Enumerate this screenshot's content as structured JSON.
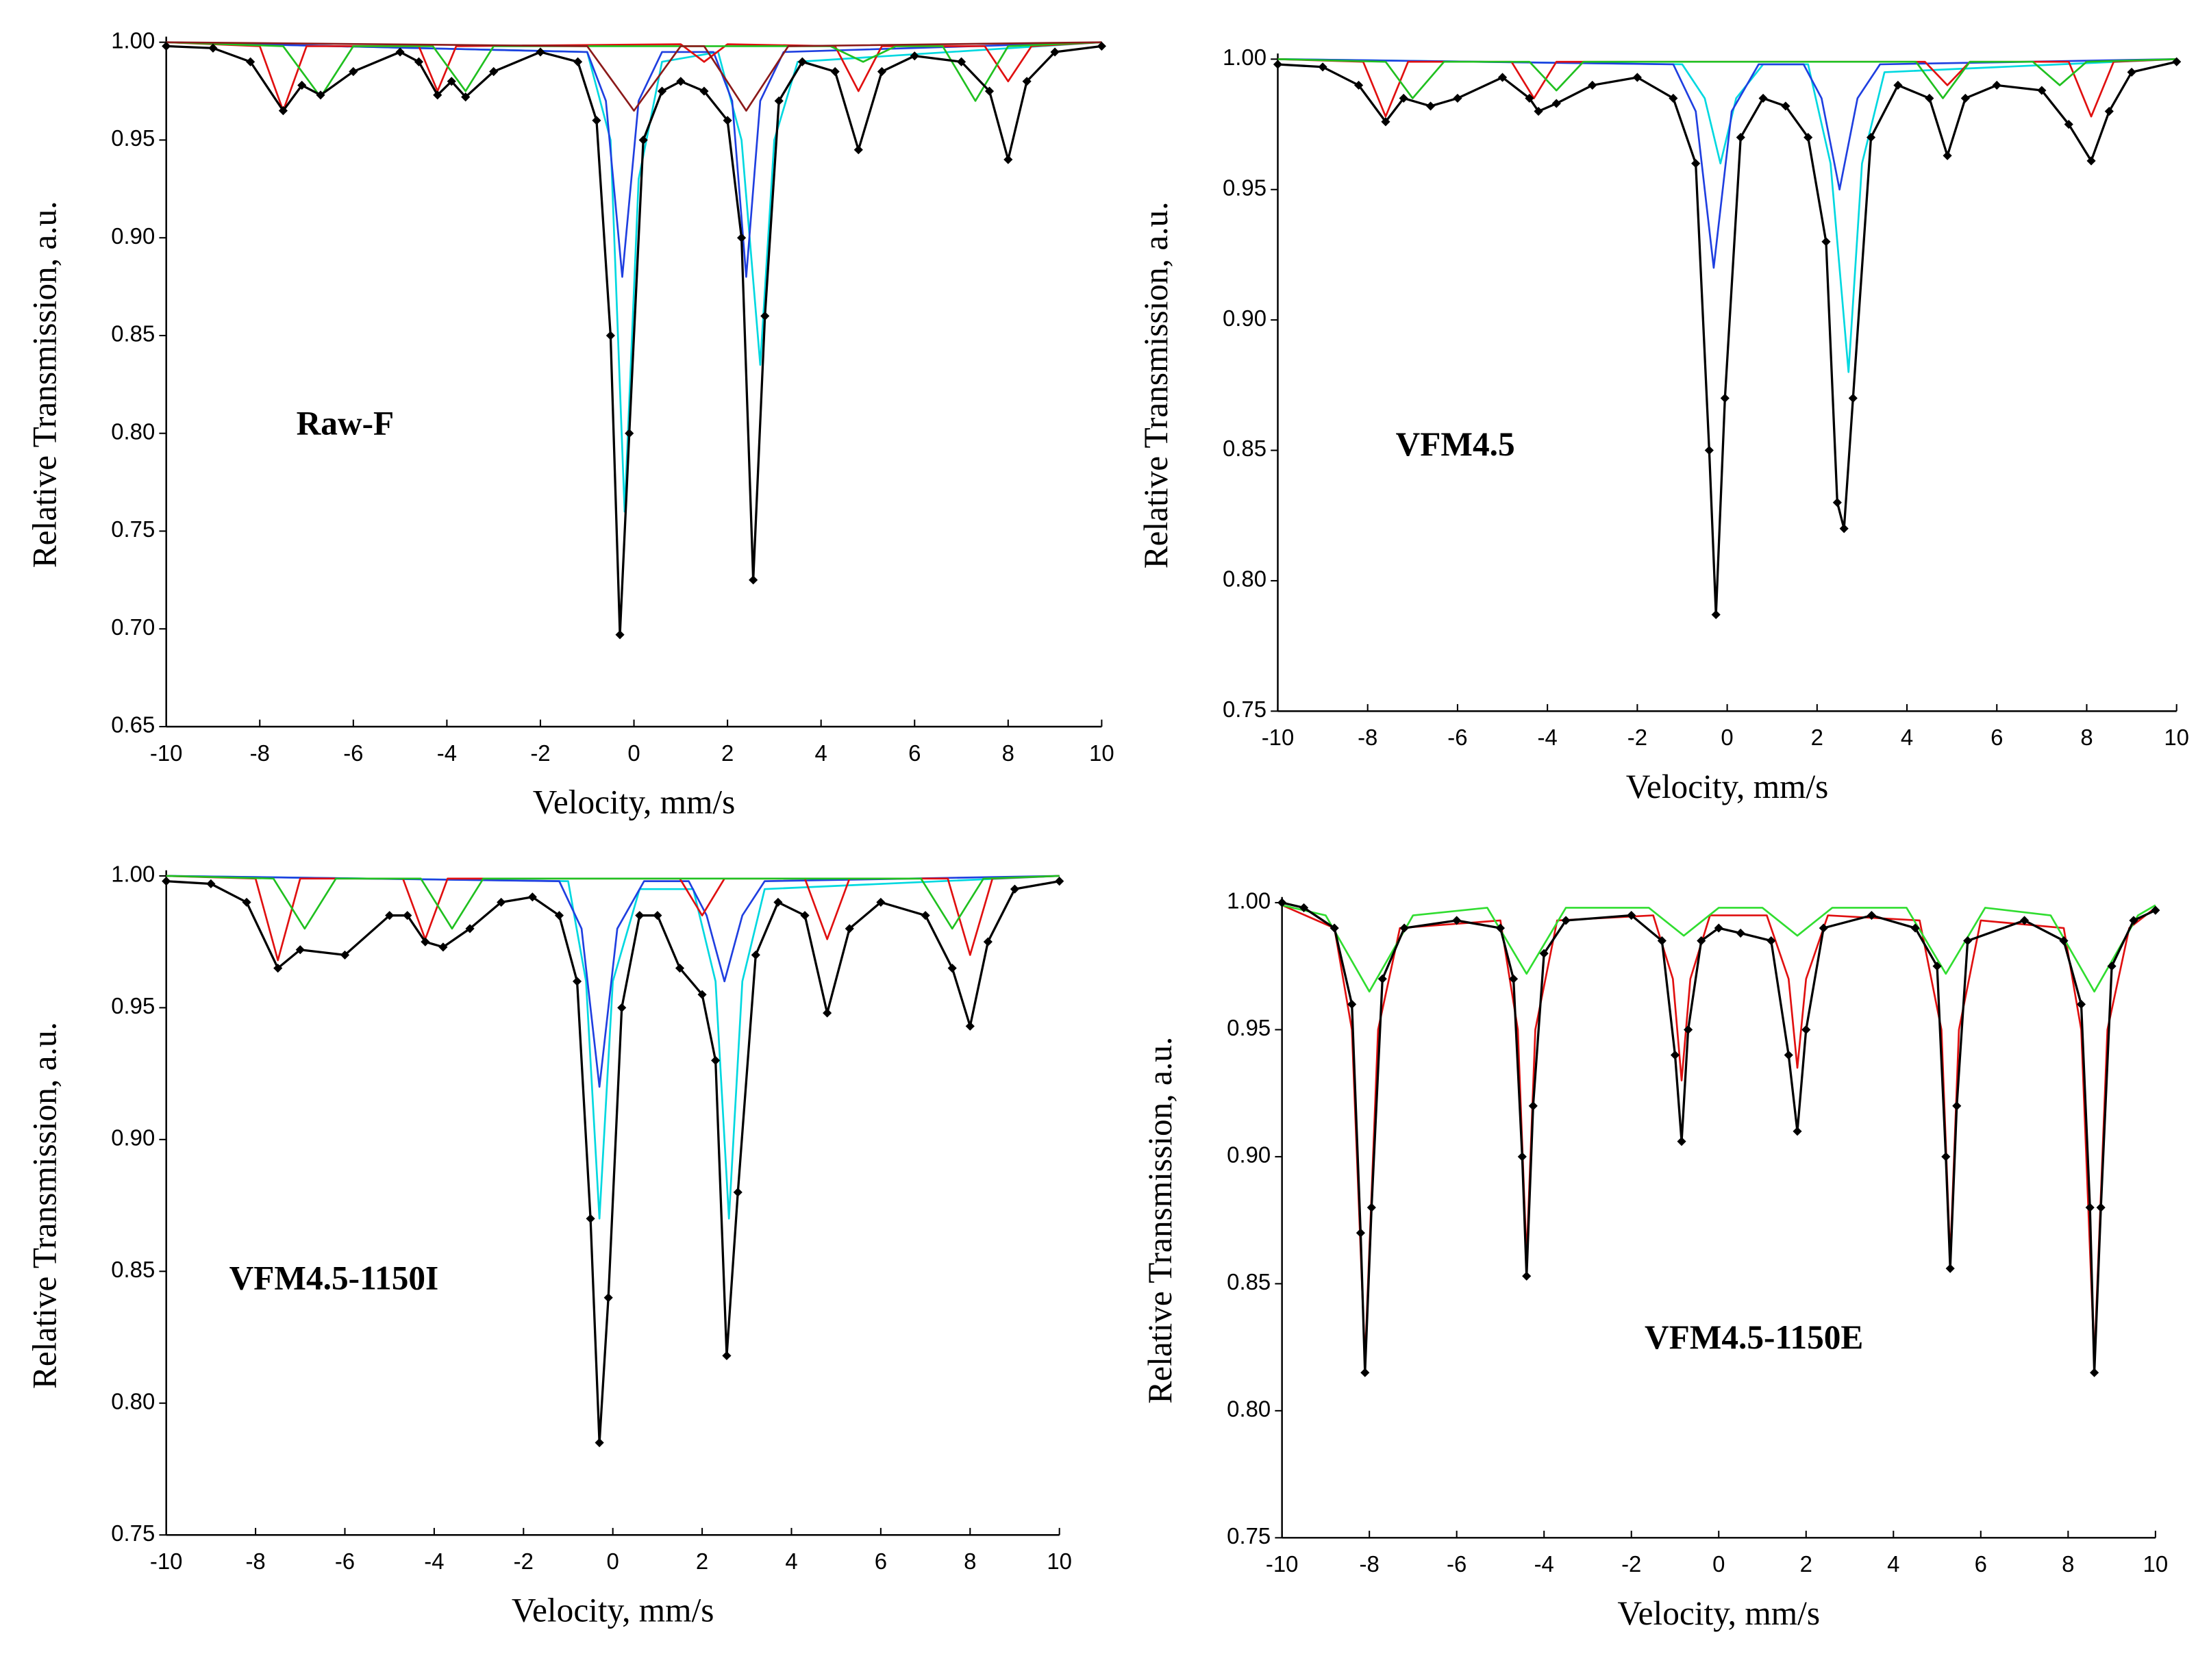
{
  "chart_data": [
    {
      "type": "line",
      "annotation": "Raw-F",
      "x_label": "Velocity, mm/s",
      "y_label": "Relative Transmission, a.u.",
      "xlim": [
        -10,
        10
      ],
      "xticks": [
        -10,
        -8,
        -6,
        -4,
        -2,
        0,
        2,
        4,
        6,
        8,
        10
      ],
      "ylim": [
        0.65,
        1.0
      ],
      "yticks": [
        {
          "value": 0.65,
          "label": "0.65"
        },
        {
          "value": 0.7,
          "label": "0.70"
        },
        {
          "value": 0.75,
          "label": "0.75"
        },
        {
          "value": 0.8,
          "label": "0.80"
        },
        {
          "value": 0.85,
          "label": "0.85"
        },
        {
          "value": 0.9,
          "label": "0.90"
        },
        {
          "value": 0.95,
          "label": "0.95"
        },
        {
          "value": 1.0,
          "label": "1.00"
        }
      ],
      "series": [
        {
          "color": "#00d8e0",
          "x": [
            -10,
            -1,
            -0.5,
            -0.2,
            0.1,
            0.6,
            1.8,
            2.3,
            2.7,
            3.0,
            3.5,
            10
          ],
          "values": [
            1,
            0.995,
            0.95,
            0.76,
            0.93,
            0.99,
            0.995,
            0.95,
            0.835,
            0.95,
            0.99,
            1
          ]
        },
        {
          "color": "#1f3fe0",
          "x": [
            -10,
            -1,
            -0.6,
            -0.25,
            0.1,
            0.6,
            1.7,
            2.1,
            2.4,
            2.7,
            3.2,
            10
          ],
          "values": [
            1,
            0.995,
            0.97,
            0.88,
            0.97,
            0.995,
            0.995,
            0.97,
            0.88,
            0.97,
            0.995,
            1
          ]
        },
        {
          "color": "#e01010",
          "x": [
            -10,
            -8,
            -7.5,
            -7,
            -4.6,
            -4.2,
            -3.8,
            1,
            1.5,
            2,
            4.3,
            4.8,
            5.3,
            7.5,
            8,
            8.5,
            10
          ],
          "values": [
            1,
            0.998,
            0.965,
            0.998,
            0.998,
            0.975,
            0.998,
            0.999,
            0.99,
            0.999,
            0.998,
            0.975,
            0.998,
            0.998,
            0.98,
            0.998,
            1
          ]
        },
        {
          "color": "#20c020",
          "x": [
            -10,
            -7.5,
            -6.7,
            -6,
            -4.3,
            -3.6,
            -3,
            4.2,
            4.9,
            5.6,
            6.6,
            7.3,
            8,
            10
          ],
          "values": [
            1,
            0.998,
            0.972,
            0.998,
            0.998,
            0.975,
            0.998,
            0.998,
            0.99,
            0.998,
            0.998,
            0.97,
            0.998,
            1
          ]
        },
        {
          "color": "#8b1a1a",
          "x": [
            -10,
            -1,
            0,
            1,
            1.5,
            2.4,
            3.3,
            10
          ],
          "values": [
            1,
            0.998,
            0.965,
            0.998,
            0.998,
            0.965,
            0.998,
            1
          ]
        },
        {
          "color": "#000000",
          "marker": "diamond",
          "x": [
            -10,
            -9,
            -8.2,
            -7.5,
            -7.1,
            -6.7,
            -6,
            -5,
            -4.6,
            -4.2,
            -3.9,
            -3.6,
            -3,
            -2,
            -1.2,
            -0.8,
            -0.5,
            -0.3,
            -0.1,
            0.2,
            0.6,
            1,
            1.5,
            2,
            2.3,
            2.55,
            2.8,
            3.1,
            3.6,
            4.3,
            4.8,
            5.3,
            6,
            7,
            7.6,
            8,
            8.4,
            9,
            10
          ],
          "values": [
            0.998,
            0.997,
            0.99,
            0.965,
            0.978,
            0.973,
            0.985,
            0.995,
            0.99,
            0.973,
            0.98,
            0.972,
            0.985,
            0.995,
            0.99,
            0.96,
            0.85,
            0.697,
            0.8,
            0.95,
            0.975,
            0.98,
            0.975,
            0.96,
            0.9,
            0.725,
            0.86,
            0.97,
            0.99,
            0.985,
            0.945,
            0.985,
            0.993,
            0.99,
            0.975,
            0.94,
            0.98,
            0.995,
            0.998
          ]
        }
      ]
    },
    {
      "type": "line",
      "annotation": "VFM4.5",
      "x_label": "Velocity, mm/s",
      "y_label": "Relative Transmission, a.u.",
      "xlim": [
        -10,
        10
      ],
      "xticks": [
        -10,
        -8,
        -6,
        -4,
        -2,
        0,
        2,
        4,
        6,
        8,
        10
      ],
      "ylim": [
        0.75,
        1.0
      ],
      "yticks": [
        {
          "value": 0.75,
          "label": "0.75"
        },
        {
          "value": 0.8,
          "label": "0.80"
        },
        {
          "value": 0.85,
          "label": "0.85"
        },
        {
          "value": 0.9,
          "label": "0.90"
        },
        {
          "value": 0.95,
          "label": "0.95"
        },
        {
          "value": 1.0,
          "label": "1.00"
        }
      ],
      "series": [
        {
          "color": "#00d8e0",
          "x": [
            -10,
            -1,
            -0.5,
            -0.15,
            0.2,
            0.8,
            1.8,
            2.3,
            2.7,
            3.0,
            3.5,
            10
          ],
          "values": [
            1,
            0.998,
            0.985,
            0.96,
            0.985,
            0.998,
            0.998,
            0.96,
            0.88,
            0.96,
            0.995,
            1
          ]
        },
        {
          "color": "#1f3fe0",
          "x": [
            -10,
            -1.2,
            -0.7,
            -0.3,
            0.1,
            0.7,
            1.7,
            2.1,
            2.5,
            2.9,
            3.4,
            10
          ],
          "values": [
            1,
            0.998,
            0.98,
            0.92,
            0.98,
            0.998,
            0.998,
            0.985,
            0.95,
            0.985,
            0.998,
            1
          ]
        },
        {
          "color": "#e01010",
          "x": [
            -10,
            -8.1,
            -7.6,
            -7.1,
            -4.8,
            -4.3,
            -3.8,
            4.4,
            4.9,
            5.4,
            7.6,
            8.1,
            8.6,
            10
          ],
          "values": [
            1,
            0.999,
            0.978,
            0.999,
            0.999,
            0.985,
            0.999,
            0.999,
            0.99,
            0.999,
            0.999,
            0.978,
            0.999,
            1
          ]
        },
        {
          "color": "#20c020",
          "x": [
            -10,
            -7.6,
            -7,
            -6.3,
            -4.4,
            -3.8,
            -3.2,
            4.2,
            4.8,
            5.4,
            6.8,
            7.4,
            8,
            10
          ],
          "values": [
            1,
            0.999,
            0.985,
            0.999,
            0.999,
            0.988,
            0.999,
            0.999,
            0.985,
            0.999,
            0.999,
            0.99,
            0.999,
            1
          ]
        },
        {
          "color": "#000000",
          "marker": "diamond",
          "x": [
            -10,
            -9,
            -8.2,
            -7.6,
            -7.2,
            -6.6,
            -6,
            -5,
            -4.4,
            -4.2,
            -3.8,
            -3,
            -2,
            -1.2,
            -0.7,
            -0.4,
            -0.25,
            -0.05,
            0.3,
            0.8,
            1.3,
            1.8,
            2.2,
            2.45,
            2.6,
            2.8,
            3.2,
            3.8,
            4.5,
            4.9,
            5.3,
            6,
            7,
            7.6,
            8.1,
            8.5,
            9,
            10
          ],
          "values": [
            0.998,
            0.997,
            0.99,
            0.976,
            0.985,
            0.982,
            0.985,
            0.993,
            0.985,
            0.98,
            0.983,
            0.99,
            0.993,
            0.985,
            0.96,
            0.85,
            0.787,
            0.87,
            0.97,
            0.985,
            0.982,
            0.97,
            0.93,
            0.83,
            0.82,
            0.87,
            0.97,
            0.99,
            0.985,
            0.963,
            0.985,
            0.99,
            0.988,
            0.975,
            0.961,
            0.98,
            0.995,
            0.999
          ]
        }
      ]
    },
    {
      "type": "line",
      "annotation": "VFM4.5-1150I",
      "x_label": "Velocity, mm/s",
      "y_label": "Relative Transmission, a.u.",
      "xlim": [
        -10,
        10
      ],
      "xticks": [
        -10,
        -8,
        -6,
        -4,
        -2,
        0,
        2,
        4,
        6,
        8,
        10
      ],
      "ylim": [
        0.75,
        1.0
      ],
      "yticks": [
        {
          "value": 0.75,
          "label": "0.75"
        },
        {
          "value": 0.8,
          "label": "0.80"
        },
        {
          "value": 0.85,
          "label": "0.85"
        },
        {
          "value": 0.9,
          "label": "0.90"
        },
        {
          "value": 0.95,
          "label": "0.95"
        },
        {
          "value": 1.0,
          "label": "1.00"
        }
      ],
      "series": [
        {
          "color": "#00d8e0",
          "x": [
            -10,
            -1,
            -0.6,
            -0.3,
            0,
            0.6,
            1.8,
            2.3,
            2.6,
            2.9,
            3.4,
            10
          ],
          "values": [
            1,
            0.998,
            0.96,
            0.87,
            0.96,
            0.995,
            0.995,
            0.96,
            0.87,
            0.96,
            0.995,
            1
          ]
        },
        {
          "color": "#1f3fe0",
          "x": [
            -10,
            -1.2,
            -0.7,
            -0.3,
            0.1,
            0.7,
            1.7,
            2.1,
            2.5,
            2.9,
            3.4,
            10
          ],
          "values": [
            1,
            0.998,
            0.98,
            0.92,
            0.98,
            0.998,
            0.998,
            0.985,
            0.96,
            0.985,
            0.998,
            1
          ]
        },
        {
          "color": "#e01010",
          "x": [
            -10,
            -8,
            -7.5,
            -7,
            -4.7,
            -4.2,
            -3.7,
            1.5,
            2,
            2.5,
            4.3,
            4.8,
            5.3,
            7.5,
            8,
            8.5,
            10
          ],
          "values": [
            1,
            0.999,
            0.968,
            0.999,
            0.999,
            0.976,
            0.999,
            0.999,
            0.985,
            0.999,
            0.999,
            0.976,
            0.999,
            0.999,
            0.97,
            0.999,
            1
          ]
        },
        {
          "color": "#20c020",
          "x": [
            -10,
            -7.6,
            -6.9,
            -6.2,
            -4.3,
            -3.6,
            -2.9,
            6.9,
            7.6,
            8.3,
            10
          ],
          "values": [
            1,
            0.999,
            0.98,
            0.999,
            0.999,
            0.98,
            0.999,
            0.999,
            0.98,
            0.999,
            1
          ]
        },
        {
          "color": "#000000",
          "marker": "diamond",
          "x": [
            -10,
            -9,
            -8.2,
            -7.5,
            -7,
            -6,
            -5,
            -4.6,
            -4.2,
            -3.8,
            -3.2,
            -2.5,
            -1.8,
            -1.2,
            -0.8,
            -0.5,
            -0.3,
            -0.1,
            0.2,
            0.6,
            1,
            1.5,
            2,
            2.3,
            2.55,
            2.8,
            3.2,
            3.7,
            4.3,
            4.8,
            5.3,
            6,
            7,
            7.6,
            8,
            8.4,
            9,
            10
          ],
          "values": [
            0.998,
            0.997,
            0.99,
            0.965,
            0.972,
            0.97,
            0.985,
            0.985,
            0.975,
            0.973,
            0.98,
            0.99,
            0.992,
            0.985,
            0.96,
            0.87,
            0.785,
            0.84,
            0.95,
            0.985,
            0.985,
            0.965,
            0.955,
            0.93,
            0.818,
            0.88,
            0.97,
            0.99,
            0.985,
            0.948,
            0.98,
            0.99,
            0.985,
            0.965,
            0.943,
            0.975,
            0.995,
            0.998
          ]
        }
      ]
    },
    {
      "type": "line",
      "annotation": "VFM4.5-1150E",
      "x_label": "Velocity, mm/s",
      "y_label": "Relative Transmission, a.u.",
      "xlim": [
        -10,
        10
      ],
      "xticks": [
        -10,
        -8,
        -6,
        -4,
        -2,
        0,
        2,
        4,
        6,
        8,
        10
      ],
      "ylim": [
        0.75,
        1.0
      ],
      "yticks": [
        {
          "value": 0.75,
          "label": "0.75"
        },
        {
          "value": 0.8,
          "label": "0.80"
        },
        {
          "value": 0.85,
          "label": "0.85"
        },
        {
          "value": 0.9,
          "label": "0.90"
        },
        {
          "value": 0.95,
          "label": "0.95"
        },
        {
          "value": 1.0,
          "label": "1.00"
        }
      ],
      "series": [
        {
          "color": "#e01010",
          "x": [
            -10,
            -8.8,
            -8.4,
            -8.1,
            -7.8,
            -7.3,
            -5,
            -4.6,
            -4.4,
            -4.2,
            -3.7,
            -1.5,
            -1.05,
            -0.85,
            -0.65,
            -0.2,
            1.1,
            1.6,
            1.8,
            2,
            2.5,
            4.6,
            5.1,
            5.3,
            5.5,
            6,
            7.9,
            8.3,
            8.6,
            8.9,
            9.4,
            10
          ],
          "values": [
            0.999,
            0.99,
            0.95,
            0.82,
            0.95,
            0.99,
            0.993,
            0.95,
            0.86,
            0.95,
            0.993,
            0.995,
            0.97,
            0.93,
            0.97,
            0.995,
            0.995,
            0.97,
            0.935,
            0.97,
            0.995,
            0.993,
            0.95,
            0.86,
            0.95,
            0.993,
            0.99,
            0.95,
            0.82,
            0.95,
            0.99,
            0.998
          ]
        },
        {
          "color": "#30dd30",
          "x": [
            -10,
            -9,
            -8,
            -7,
            -5.3,
            -4.4,
            -3.5,
            -1.6,
            -0.8,
            0,
            1,
            1.8,
            2.6,
            4.3,
            5.2,
            6.1,
            7.6,
            8.6,
            9.6,
            10
          ],
          "values": [
            0.999,
            0.995,
            0.965,
            0.995,
            0.998,
            0.972,
            0.998,
            0.998,
            0.987,
            0.998,
            0.998,
            0.987,
            0.998,
            0.998,
            0.972,
            0.998,
            0.995,
            0.965,
            0.995,
            0.999
          ]
        },
        {
          "color": "#000000",
          "marker": "diamond",
          "x": [
            -10,
            -9.5,
            -8.8,
            -8.4,
            -8.2,
            -8.1,
            -7.95,
            -7.7,
            -7.2,
            -6,
            -5,
            -4.7,
            -4.5,
            -4.4,
            -4.25,
            -4,
            -3.5,
            -2,
            -1.3,
            -1,
            -0.85,
            -0.7,
            -0.4,
            0,
            0.5,
            1.2,
            1.6,
            1.8,
            2,
            2.4,
            3.5,
            4.5,
            5,
            5.2,
            5.3,
            5.45,
            5.7,
            7,
            7.9,
            8.3,
            8.5,
            8.6,
            8.75,
            9,
            9.5,
            10
          ],
          "values": [
            1.0,
            0.998,
            0.99,
            0.96,
            0.87,
            0.815,
            0.88,
            0.97,
            0.99,
            0.993,
            0.99,
            0.97,
            0.9,
            0.853,
            0.92,
            0.98,
            0.993,
            0.995,
            0.985,
            0.94,
            0.906,
            0.95,
            0.985,
            0.99,
            0.988,
            0.985,
            0.94,
            0.91,
            0.95,
            0.99,
            0.995,
            0.99,
            0.975,
            0.9,
            0.856,
            0.92,
            0.985,
            0.993,
            0.985,
            0.96,
            0.88,
            0.815,
            0.88,
            0.975,
            0.993,
            0.997
          ]
        }
      ]
    }
  ]
}
